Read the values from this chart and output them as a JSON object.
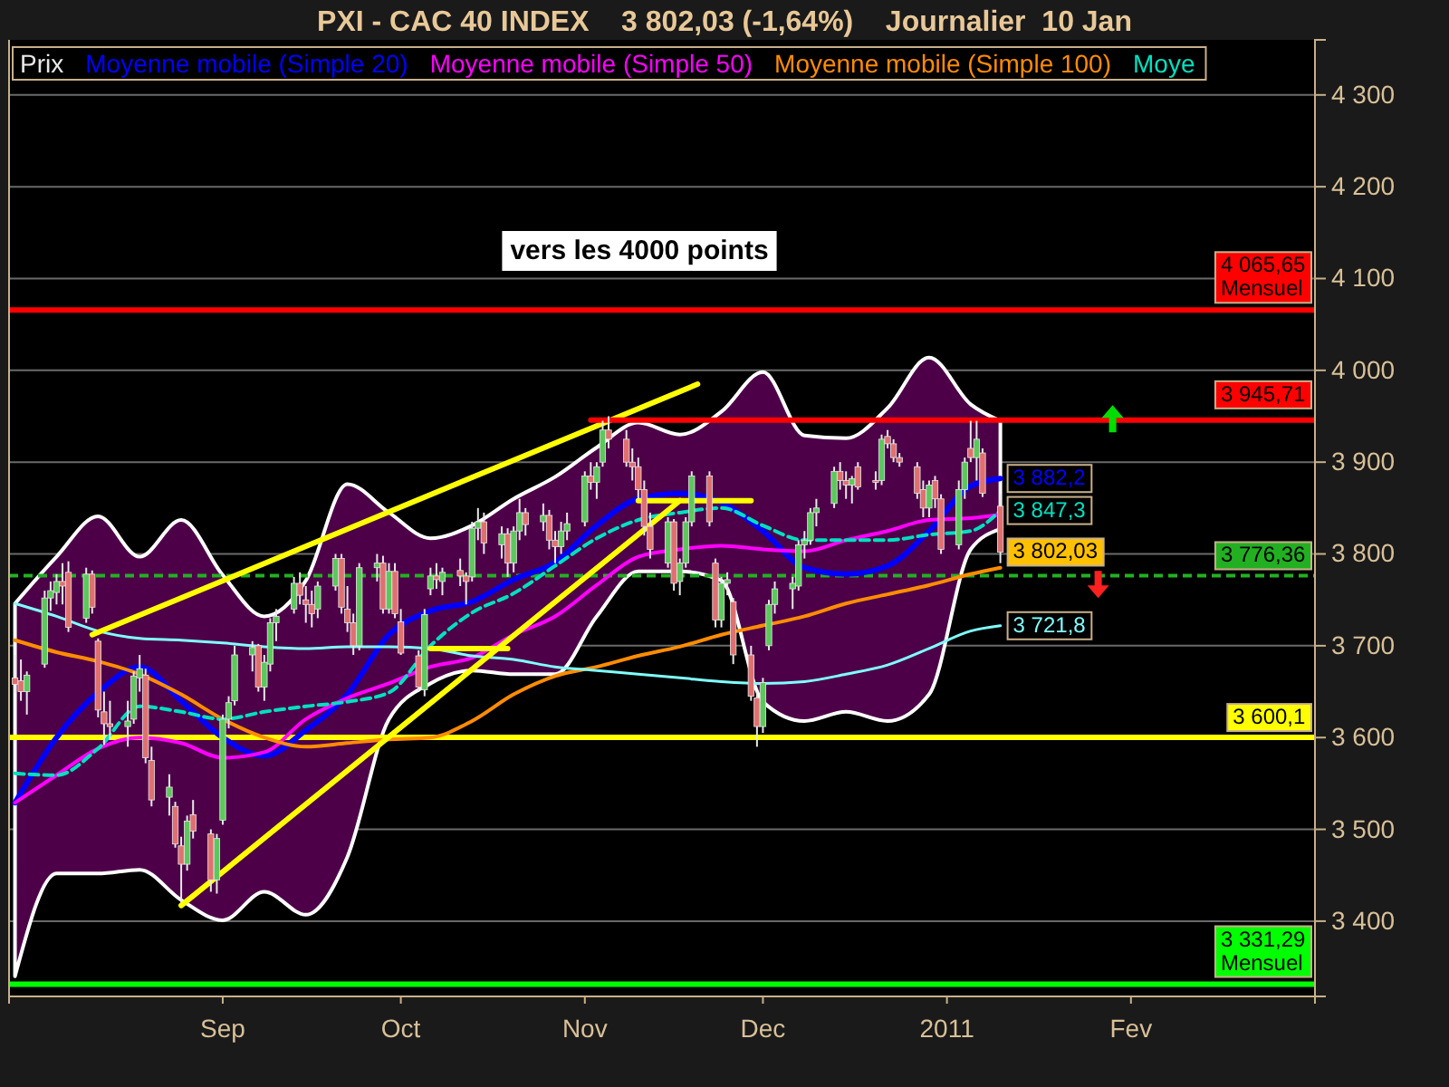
{
  "chart_data": {
    "type": "candlestick",
    "title": "PXI - CAC 40 INDEX    3 802,03 (-1,64%)    Journalier  10 Jan",
    "x": [
      "2010-07-28",
      "2010-07-29",
      "2010-07-30",
      "2010-08-02",
      "2010-08-03",
      "2010-08-04",
      "2010-08-05",
      "2010-08-06",
      "2010-08-09",
      "2010-08-10",
      "2010-08-11",
      "2010-08-12",
      "2010-08-13",
      "2010-08-16",
      "2010-08-17",
      "2010-08-18",
      "2010-08-19",
      "2010-08-20",
      "2010-08-23",
      "2010-08-24",
      "2010-08-25",
      "2010-08-26",
      "2010-08-27",
      "2010-08-30",
      "2010-08-31",
      "2010-09-01",
      "2010-09-02",
      "2010-09-03",
      "2010-09-06",
      "2010-09-07",
      "2010-09-08",
      "2010-09-09",
      "2010-09-10",
      "2010-09-13",
      "2010-09-14",
      "2010-09-15",
      "2010-09-16",
      "2010-09-17",
      "2010-09-20",
      "2010-09-21",
      "2010-09-22",
      "2010-09-23",
      "2010-09-24",
      "2010-09-27",
      "2010-09-28",
      "2010-09-29",
      "2010-09-30",
      "2010-10-01",
      "2010-10-04",
      "2010-10-05",
      "2010-10-06",
      "2010-10-07",
      "2010-10-08",
      "2010-10-11",
      "2010-10-12",
      "2010-10-13",
      "2010-10-14",
      "2010-10-15",
      "2010-10-18",
      "2010-10-19",
      "2010-10-20",
      "2010-10-21",
      "2010-10-22",
      "2010-10-25",
      "2010-10-26",
      "2010-10-27",
      "2010-10-28",
      "2010-10-29",
      "2010-11-01",
      "2010-11-02",
      "2010-11-03",
      "2010-11-04",
      "2010-11-05",
      "2010-11-08",
      "2010-11-09",
      "2010-11-10",
      "2010-11-11",
      "2010-11-12",
      "2010-11-15",
      "2010-11-16",
      "2010-11-17",
      "2010-11-18",
      "2010-11-19",
      "2010-11-22",
      "2010-11-23",
      "2010-11-24",
      "2010-11-25",
      "2010-11-26",
      "2010-11-29",
      "2010-11-30",
      "2010-12-01",
      "2010-12-02",
      "2010-12-03",
      "2010-12-06",
      "2010-12-07",
      "2010-12-08",
      "2010-12-09",
      "2010-12-10",
      "2010-12-13",
      "2010-12-14",
      "2010-12-15",
      "2010-12-16",
      "2010-12-17",
      "2010-12-20",
      "2010-12-21",
      "2010-12-22",
      "2010-12-23",
      "2010-12-24",
      "2010-12-27",
      "2010-12-28",
      "2010-12-29",
      "2010-12-30",
      "2010-12-31",
      "2011-01-03",
      "2011-01-04",
      "2011-01-05",
      "2011-01-06",
      "2011-01-07",
      "2011-01-10"
    ],
    "xlim": [
      "2010-07-27",
      "2011-03-04"
    ],
    "xticks": [
      {
        "value": "2010-09-01",
        "label": "Sep"
      },
      {
        "value": "2010-10-01",
        "label": "Oct"
      },
      {
        "value": "2010-11-01",
        "label": "Nov"
      },
      {
        "value": "2010-12-01",
        "label": "Dec"
      },
      {
        "value": "2011-01-01",
        "label": "2011"
      },
      {
        "value": "2011-02-01",
        "label": "Fev"
      }
    ],
    "ylim": [
      3318,
      4360
    ],
    "yticks": [
      {
        "value": 3400,
        "label": "3 400"
      },
      {
        "value": 3500,
        "label": "3 500"
      },
      {
        "value": 3600,
        "label": "3 600"
      },
      {
        "value": 3700,
        "label": "3 700"
      },
      {
        "value": 3800,
        "label": "3 800"
      },
      {
        "value": 3900,
        "label": "3 900"
      },
      {
        "value": 4000,
        "label": "4 000"
      },
      {
        "value": 4100,
        "label": "4 100"
      },
      {
        "value": 4200,
        "label": "4 200"
      },
      {
        "value": 4300,
        "label": "4 300"
      }
    ],
    "grid": "y",
    "legend": "top left",
    "annotations": [
      "vers les 4000 points",
      {
        "text": "3 802,03",
        "x": "2011-01-10",
        "y": 3802.03
      }
    ],
    "ref_lines": [
      {
        "axis": "y",
        "value": 4065.65,
        "label": "4 065,65\nMensuel",
        "color": "#ff0000"
      },
      {
        "axis": "y",
        "value": 3776.36,
        "label": "3 776,36",
        "color": "#22b022",
        "line_style": "dashed"
      },
      {
        "axis": "y",
        "value": 3600.1,
        "label": "3 600,1",
        "color": "#ffff00"
      },
      {
        "axis": "y",
        "value": 3331.29,
        "label": "3 331,29\nMensuel",
        "color": "#00ff00"
      }
    ],
    "series": [
      {
        "name": "Prix",
        "color": "#e8e8e8",
        "ohlc": [
          [
            3665,
            3690,
            3648,
            3658
          ],
          [
            3662,
            3685,
            3640,
            3650
          ],
          [
            3650,
            3672,
            3625,
            3668
          ],
          [
            3680,
            3760,
            3676,
            3752
          ],
          [
            3752,
            3770,
            3738,
            3760
          ],
          [
            3758,
            3778,
            3745,
            3770
          ],
          [
            3770,
            3790,
            3745,
            3765
          ],
          [
            3780,
            3792,
            3715,
            3720
          ],
          [
            3730,
            3785,
            3725,
            3778
          ],
          [
            3778,
            3782,
            3735,
            3742
          ],
          [
            3705,
            3708,
            3622,
            3630
          ],
          [
            3628,
            3650,
            3592,
            3615
          ],
          [
            3615,
            3640,
            3598,
            3612
          ],
          [
            3612,
            3640,
            3590,
            3618
          ],
          [
            3620,
            3672,
            3615,
            3667
          ],
          [
            3665,
            3690,
            3650,
            3675
          ],
          [
            3668,
            3675,
            3572,
            3578
          ],
          [
            3575,
            3590,
            3525,
            3532
          ],
          [
            3535,
            3560,
            3515,
            3546
          ],
          [
            3525,
            3530,
            3480,
            3484
          ],
          [
            3482,
            3492,
            3420,
            3462
          ],
          [
            3462,
            3515,
            3455,
            3509
          ],
          [
            3516,
            3532,
            3490,
            3498
          ],
          [
            3495,
            3500,
            3432,
            3445
          ],
          [
            3445,
            3495,
            3430,
            3490
          ],
          [
            3510,
            3625,
            3505,
            3620
          ],
          [
            3620,
            3645,
            3610,
            3638
          ],
          [
            3640,
            3700,
            3635,
            3690
          ],
          [
            3690,
            3705,
            3672,
            3698
          ],
          [
            3700,
            3702,
            3650,
            3655
          ],
          [
            3655,
            3690,
            3640,
            3682
          ],
          [
            3680,
            3730,
            3672,
            3725
          ],
          [
            3725,
            3740,
            3705,
            3732
          ],
          [
            3740,
            3775,
            3735,
            3768
          ],
          [
            3768,
            3780,
            3745,
            3755
          ],
          [
            3750,
            3765,
            3725,
            3745
          ],
          [
            3745,
            3760,
            3720,
            3735
          ],
          [
            3740,
            3770,
            3730,
            3765
          ],
          [
            3765,
            3800,
            3760,
            3795
          ],
          [
            3795,
            3800,
            3735,
            3742
          ],
          [
            3740,
            3765,
            3715,
            3725
          ],
          [
            3725,
            3735,
            3690,
            3700
          ],
          [
            3700,
            3790,
            3695,
            3785
          ],
          [
            3785,
            3800,
            3770,
            3790
          ],
          [
            3790,
            3798,
            3735,
            3740
          ],
          [
            3740,
            3790,
            3735,
            3781
          ],
          [
            3781,
            3790,
            3730,
            3735
          ],
          [
            3726,
            3740,
            3690,
            3692
          ],
          [
            3689,
            3695,
            3650,
            3655
          ],
          [
            3652,
            3740,
            3645,
            3734
          ],
          [
            3762,
            3785,
            3755,
            3776
          ],
          [
            3776,
            3790,
            3762,
            3772
          ],
          [
            3770,
            3785,
            3755,
            3780
          ],
          [
            3782,
            3795,
            3765,
            3776
          ],
          [
            3776,
            3780,
            3745,
            3770
          ],
          [
            3775,
            3835,
            3770,
            3828
          ],
          [
            3828,
            3850,
            3815,
            3835
          ],
          [
            3835,
            3845,
            3800,
            3812
          ],
          [
            3810,
            3830,
            3795,
            3822
          ],
          [
            3822,
            3828,
            3775,
            3790
          ],
          [
            3790,
            3830,
            3780,
            3825
          ],
          [
            3825,
            3860,
            3815,
            3845
          ],
          [
            3845,
            3850,
            3820,
            3832
          ],
          [
            3835,
            3855,
            3825,
            3842
          ],
          [
            3842,
            3848,
            3805,
            3815
          ],
          [
            3815,
            3825,
            3790,
            3808
          ],
          [
            3808,
            3835,
            3800,
            3825
          ],
          [
            3825,
            3845,
            3815,
            3833
          ],
          [
            3835,
            3890,
            3830,
            3885
          ],
          [
            3885,
            3900,
            3870,
            3878
          ],
          [
            3878,
            3900,
            3860,
            3895
          ],
          [
            3900,
            3945,
            3895,
            3935
          ],
          [
            3935,
            3950,
            3915,
            3925
          ],
          [
            3925,
            3935,
            3895,
            3900
          ],
          [
            3900,
            3915,
            3880,
            3895
          ],
          [
            3895,
            3905,
            3860,
            3870
          ],
          [
            3870,
            3880,
            3820,
            3830
          ],
          [
            3830,
            3845,
            3795,
            3805
          ],
          [
            3790,
            3840,
            3785,
            3835
          ],
          [
            3835,
            3838,
            3760,
            3768
          ],
          [
            3770,
            3795,
            3755,
            3790
          ],
          [
            3790,
            3840,
            3785,
            3835
          ],
          [
            3835,
            3890,
            3830,
            3885
          ],
          [
            3885,
            3890,
            3830,
            3835
          ],
          [
            3790,
            3795,
            3720,
            3728
          ],
          [
            3728,
            3775,
            3720,
            3768
          ],
          [
            3768,
            3780,
            3755,
            3772
          ],
          [
            3748,
            3752,
            3680,
            3690
          ],
          [
            3690,
            3700,
            3640,
            3645
          ],
          [
            3643,
            3650,
            3590,
            3612
          ],
          [
            3612,
            3665,
            3605,
            3660
          ],
          [
            3700,
            3750,
            3695,
            3745
          ],
          [
            3745,
            3770,
            3735,
            3762
          ],
          [
            3762,
            3775,
            3740,
            3768
          ],
          [
            3765,
            3815,
            3760,
            3810
          ],
          [
            3810,
            3825,
            3795,
            3815
          ],
          [
            3815,
            3850,
            3810,
            3845
          ],
          [
            3845,
            3860,
            3830,
            3850
          ],
          [
            3855,
            3895,
            3850,
            3890
          ],
          [
            3890,
            3900,
            3870,
            3880
          ],
          [
            3880,
            3890,
            3860,
            3875
          ],
          [
            3875,
            3885,
            3855,
            3882
          ],
          [
            3895,
            3900,
            3870,
            3873
          ],
          [
            3880,
            3890,
            3870,
            3878
          ],
          [
            3880,
            3930,
            3875,
            3925
          ],
          [
            3928,
            3935,
            3915,
            3920
          ],
          [
            3920,
            3925,
            3900,
            3905
          ],
          [
            3905,
            3910,
            3895,
            3900
          ],
          [
            3895,
            3900,
            3860,
            3866
          ],
          [
            3870,
            3880,
            3840,
            3850
          ],
          [
            3850,
            3880,
            3840,
            3875
          ],
          [
            3880,
            3885,
            3850,
            3860
          ],
          [
            3860,
            3865,
            3800,
            3805
          ],
          [
            3810,
            3880,
            3805,
            3870
          ],
          [
            3870,
            3905,
            3860,
            3900
          ],
          [
            3915,
            3945,
            3900,
            3905
          ],
          [
            3905,
            3945,
            3880,
            3925
          ],
          [
            3910,
            3915,
            3862,
            3866
          ],
          [
            3852,
            3866,
            3790,
            3802.03
          ]
        ],
        "colors": [
          "#e07070",
          "#e07070",
          "#5cc85c",
          "#5cc85c",
          "#5cc85c",
          "#5cc85c",
          "#e07070",
          "#e07070",
          "#5cc85c",
          "#e07070",
          "#e07070",
          "#e07070",
          "#e07070",
          "#5cc85c",
          "#5cc85c",
          "#5cc85c",
          "#e07070",
          "#e07070",
          "#5cc85c",
          "#e07070",
          "#e07070",
          "#5cc85c",
          "#e07070",
          "#e07070",
          "#5cc85c",
          "#5cc85c",
          "#5cc85c",
          "#5cc85c",
          "#5cc85c",
          "#e07070",
          "#5cc85c",
          "#5cc85c",
          "#5cc85c",
          "#5cc85c",
          "#e07070",
          "#e07070",
          "#e07070",
          "#5cc85c",
          "#5cc85c",
          "#e07070",
          "#e07070",
          "#e07070",
          "#5cc85c",
          "#5cc85c",
          "#e07070",
          "#5cc85c",
          "#e07070",
          "#e07070",
          "#e07070",
          "#5cc85c",
          "#5cc85c",
          "#e07070",
          "#5cc85c",
          "#e07070",
          "#e07070",
          "#5cc85c",
          "#5cc85c",
          "#e07070",
          "#5cc85c",
          "#e07070",
          "#5cc85c",
          "#5cc85c",
          "#e07070",
          "#5cc85c",
          "#e07070",
          "#e07070",
          "#5cc85c",
          "#5cc85c",
          "#5cc85c",
          "#e07070",
          "#5cc85c",
          "#5cc85c",
          "#e07070",
          "#e07070",
          "#e07070",
          "#e07070",
          "#e07070",
          "#e07070",
          "#5cc85c",
          "#e07070",
          "#5cc85c",
          "#5cc85c",
          "#5cc85c",
          "#e07070",
          "#e07070",
          "#5cc85c",
          "#5cc85c",
          "#e07070",
          "#e07070",
          "#e07070",
          "#5cc85c",
          "#5cc85c",
          "#5cc85c",
          "#5cc85c",
          "#5cc85c",
          "#5cc85c",
          "#5cc85c",
          "#5cc85c",
          "#5cc85c",
          "#e07070",
          "#e07070",
          "#5cc85c",
          "#e07070",
          "#e07070",
          "#5cc85c",
          "#e07070",
          "#e07070",
          "#e07070",
          "#e07070",
          "#e07070",
          "#5cc85c",
          "#e07070",
          "#e07070",
          "#5cc85c",
          "#5cc85c",
          "#e07070",
          "#5cc85c",
          "#e07070",
          "#e07070"
        ]
      },
      {
        "type": "line",
        "name": "Moyenne mobile (Simple 20)",
        "color": "#0000ff",
        "x": [
          "2010-07-28",
          "2010-08-04",
          "2010-08-11",
          "2010-08-18",
          "2010-08-25",
          "2010-09-01",
          "2010-09-08",
          "2010-09-15",
          "2010-09-22",
          "2010-09-29",
          "2010-10-06",
          "2010-10-13",
          "2010-10-20",
          "2010-10-27",
          "2010-11-03",
          "2010-11-10",
          "2010-11-17",
          "2010-11-24",
          "2010-12-01",
          "2010-12-08",
          "2010-12-15",
          "2010-12-22",
          "2010-12-29",
          "2011-01-05",
          "2011-01-10"
        ],
        "values": [
          3529,
          3600,
          3649,
          3677,
          3640,
          3600,
          3580,
          3608,
          3647,
          3712,
          3738,
          3748,
          3772,
          3791,
          3831,
          3860,
          3866,
          3856,
          3825,
          3785,
          3778,
          3787,
          3825,
          3874,
          3882.2
        ],
        "lower": [
          3340,
          3452,
          3452,
          3456,
          3423,
          3401,
          3432,
          3407,
          3470,
          3620,
          3659,
          3673,
          3669,
          3669,
          3732,
          3781,
          3781,
          3771,
          3639,
          3618,
          3628,
          3618,
          3647,
          3805,
          3827
        ],
        "upper": [
          3746,
          3797,
          3841,
          3797,
          3837,
          3777,
          3732,
          3771,
          3876,
          3845,
          3817,
          3831,
          3860,
          3884,
          3916,
          3943,
          3930,
          3955,
          3998,
          3929,
          3926,
          3959,
          4014,
          3963,
          3945
        ],
        "value_labels": [
          null,
          null,
          null,
          null,
          null,
          null,
          null,
          null,
          null,
          null,
          null,
          null,
          null,
          null,
          null,
          null,
          null,
          null,
          null,
          null,
          null,
          null,
          null,
          null,
          "3 882,2"
        ]
      },
      {
        "type": "line",
        "name": "Moyenne mobile (Simple 50)",
        "color": "#ff00ff",
        "x": [
          "2010-07-28",
          "2010-08-04",
          "2010-08-11",
          "2010-08-18",
          "2010-08-25",
          "2010-09-01",
          "2010-09-08",
          "2010-09-15",
          "2010-09-22",
          "2010-09-29",
          "2010-10-06",
          "2010-10-13",
          "2010-10-20",
          "2010-10-27",
          "2010-11-03",
          "2010-11-10",
          "2010-11-17",
          "2010-11-24",
          "2010-12-01",
          "2010-12-08",
          "2010-12-15",
          "2010-12-22",
          "2010-12-29",
          "2011-01-05",
          "2011-01-10"
        ],
        "values": [
          3529,
          3559,
          3588,
          3600,
          3594,
          3578,
          3584,
          3620,
          3643,
          3659,
          3677,
          3687,
          3712,
          3732,
          3766,
          3797,
          3805,
          3809,
          3805,
          3803,
          3815,
          3825,
          3837,
          3839,
          3843
        ]
      },
      {
        "type": "line",
        "name": "Moyenne mobile (Simple 100)",
        "color": "#ff8c00",
        "x": [
          "2010-07-28",
          "2010-08-04",
          "2010-08-11",
          "2010-08-18",
          "2010-08-25",
          "2010-09-01",
          "2010-09-08",
          "2010-09-15",
          "2010-09-22",
          "2010-09-29",
          "2010-10-06",
          "2010-10-13",
          "2010-10-20",
          "2010-10-27",
          "2010-11-03",
          "2010-11-10",
          "2010-11-17",
          "2010-11-24",
          "2010-12-01",
          "2010-12-08",
          "2010-12-15",
          "2010-12-22",
          "2010-12-29",
          "2011-01-05",
          "2011-01-10"
        ],
        "values": [
          3706,
          3693,
          3683,
          3669,
          3647,
          3620,
          3600,
          3590,
          3594,
          3598,
          3600,
          3618,
          3647,
          3667,
          3677,
          3689,
          3699,
          3712,
          3722,
          3732,
          3746,
          3756,
          3766,
          3778,
          3785
        ]
      },
      {
        "type": "line",
        "name": "Moye",
        "color": "#00e0c0",
        "line_style": "dashed",
        "x": [
          "2010-07-28",
          "2010-08-04",
          "2010-08-11",
          "2010-08-18",
          "2010-08-25",
          "2010-09-01",
          "2010-09-08",
          "2010-09-15",
          "2010-09-22",
          "2010-09-29",
          "2010-10-06",
          "2010-10-13",
          "2010-10-20",
          "2010-10-27",
          "2010-11-03",
          "2010-11-10",
          "2010-11-17",
          "2010-11-24",
          "2010-12-01",
          "2010-12-08",
          "2010-12-15",
          "2010-12-22",
          "2010-12-29",
          "2011-01-05",
          "2011-01-10"
        ],
        "values": [
          3561,
          3559,
          3588,
          3634,
          3628,
          3620,
          3628,
          3634,
          3639,
          3649,
          3700,
          3736,
          3757,
          3787,
          3817,
          3837,
          3845,
          3850,
          3831,
          3815,
          3815,
          3815,
          3821,
          3825,
          3847.3
        ],
        "value_labels": [
          null,
          null,
          null,
          null,
          null,
          null,
          null,
          null,
          null,
          null,
          null,
          null,
          null,
          null,
          null,
          null,
          null,
          null,
          null,
          null,
          null,
          null,
          null,
          null,
          "3 847,3"
        ]
      },
      {
        "type": "line",
        "color": "#80ffff",
        "x": [
          "2010-07-28",
          "2010-08-04",
          "2010-08-11",
          "2010-08-18",
          "2010-08-25",
          "2010-09-01",
          "2010-09-08",
          "2010-09-15",
          "2010-09-22",
          "2010-09-29",
          "2010-10-06",
          "2010-10-13",
          "2010-10-20",
          "2010-10-27",
          "2010-11-03",
          "2010-11-10",
          "2010-11-17",
          "2010-11-24",
          "2010-12-01",
          "2010-12-08",
          "2010-12-15",
          "2010-12-22",
          "2010-12-29",
          "2011-01-05",
          "2011-01-10"
        ],
        "values": [
          3746,
          3732,
          3716,
          3708,
          3706,
          3703,
          3699,
          3697,
          3699,
          3699,
          3697,
          3689,
          3685,
          3677,
          3673,
          3669,
          3665,
          3661,
          3659,
          3661,
          3669,
          3679,
          3697,
          3716,
          3721.8
        ],
        "value_labels": [
          null,
          null,
          null,
          null,
          null,
          null,
          null,
          null,
          null,
          null,
          null,
          null,
          null,
          null,
          null,
          null,
          null,
          null,
          null,
          null,
          null,
          null,
          null,
          null,
          "3 721,8"
        ]
      },
      {
        "type": "line",
        "color": "#ffff00",
        "x": [
          "2010-08-10",
          "2010-11-20"
        ],
        "values": [
          3712,
          3985
        ]
      },
      {
        "type": "line",
        "color": "#ffff00",
        "x": [
          "2010-08-25",
          "2010-11-17"
        ],
        "values": [
          3417,
          3858
        ]
      },
      {
        "type": "line",
        "color": "#ffff00",
        "x": [
          "2010-11-10",
          "2010-11-29"
        ],
        "values": [
          3858,
          3858
        ]
      },
      {
        "type": "line",
        "color": "#ffff00",
        "x": [
          "2010-10-06",
          "2010-10-19"
        ],
        "values": [
          3697,
          3697
        ]
      },
      {
        "type": "line",
        "color": "#ff0000",
        "x": [
          "2010-11-02",
          "2011-03-04"
        ],
        "values": [
          3945.71,
          3945.71
        ],
        "value_labels": [
          null,
          "3 945,71"
        ]
      }
    ]
  }
}
